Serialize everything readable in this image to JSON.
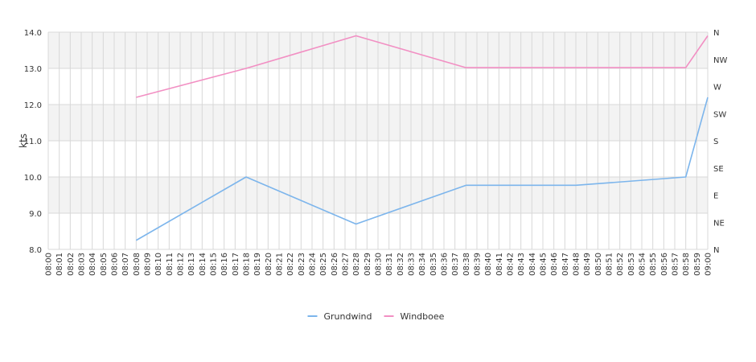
{
  "chart_data": {
    "type": "line",
    "x": [
      "08:00",
      "08:01",
      "08:02",
      "08:03",
      "08:04",
      "08:05",
      "08:06",
      "08:07",
      "08:08",
      "08:09",
      "08:10",
      "08:11",
      "08:12",
      "08:13",
      "08:14",
      "08:15",
      "08:16",
      "08:17",
      "08:18",
      "08:19",
      "08:20",
      "08:21",
      "08:22",
      "08:23",
      "08:24",
      "08:25",
      "08:26",
      "08:27",
      "08:28",
      "08:29",
      "08:30",
      "08:31",
      "08:32",
      "08:33",
      "08:34",
      "08:35",
      "08:36",
      "08:37",
      "08:38",
      "08:39",
      "08:40",
      "08:41",
      "08:42",
      "08:43",
      "08:44",
      "08:45",
      "08:46",
      "08:47",
      "08:48",
      "08:49",
      "08:50",
      "08:51",
      "08:52",
      "08:53",
      "08:54",
      "08:55",
      "08:56",
      "08:57",
      "08:58",
      "08:59",
      "09:00"
    ],
    "ylabel": "kts",
    "ylim": [
      8.0,
      14.0
    ],
    "yticks": [
      "8.0",
      "9.0",
      "10.0",
      "11.0",
      "12.0",
      "13.0",
      "14.0"
    ],
    "right_axis_labels": [
      "N",
      "NE",
      "E",
      "SE",
      "S",
      "SW",
      "W",
      "NW",
      "N"
    ],
    "grid": true,
    "legend_position": "bottom",
    "series": [
      {
        "name": "Grundwind",
        "color": "#7cb5ec",
        "points": [
          {
            "x": "08:08",
            "y": 8.25
          },
          {
            "x": "08:18",
            "y": 10.0
          },
          {
            "x": "08:28",
            "y": 8.7
          },
          {
            "x": "08:38",
            "y": 9.77
          },
          {
            "x": "08:48",
            "y": 9.77
          },
          {
            "x": "08:58",
            "y": 10.0
          },
          {
            "x": "09:00",
            "y": 12.2
          }
        ]
      },
      {
        "name": "Windboee",
        "color": "#f28fc3",
        "points": [
          {
            "x": "08:08",
            "y": 12.2
          },
          {
            "x": "08:18",
            "y": 13.0
          },
          {
            "x": "08:28",
            "y": 13.9
          },
          {
            "x": "08:38",
            "y": 13.02
          },
          {
            "x": "08:48",
            "y": 13.02
          },
          {
            "x": "08:58",
            "y": 13.02
          },
          {
            "x": "09:00",
            "y": 13.9
          }
        ]
      }
    ]
  }
}
